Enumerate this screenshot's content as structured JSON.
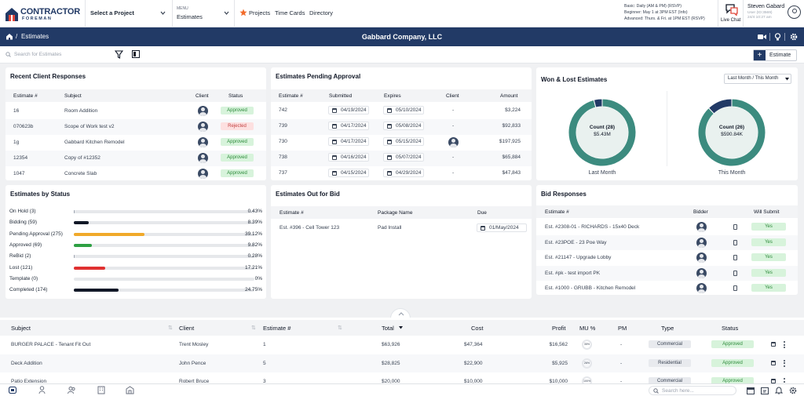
{
  "topbar": {
    "logo_word": "CONTRACTOR",
    "logo_sub": "FOREMAN",
    "project_select": "Select a Project",
    "menu_label": "MENU",
    "menu_value": "Estimates",
    "quick_links": [
      "Projects",
      "Time Cards",
      "Directory"
    ],
    "schedule_lines": [
      "Basic: Daily (AM & PM) (RSVP)",
      "Beginner: May 1 at 3PM EST (Info)",
      "Advanced: Thurs. & Fri. at 1PM EST (RSVP)"
    ],
    "live_chat": "Live Chat",
    "user_name": "Steven Gabard",
    "user_sub1": "User (ID:3569)",
    "user_sub2": "24/4 10:27 am"
  },
  "breadcrumb": {
    "sep": "/",
    "label": "Estimates"
  },
  "company": "Gabbard Company, LLC",
  "search": {
    "placeholder": "Search for Estimates"
  },
  "add_button": {
    "plus": "+",
    "label": "Estimate"
  },
  "recent": {
    "title": "Recent Client Responses",
    "headers": [
      "Estimate #",
      "Subject",
      "Client",
      "Status"
    ],
    "rows": [
      {
        "est": "16",
        "subject": "Room Addition",
        "status": "Approved"
      },
      {
        "est": "070623b",
        "subject": "Scope of Work test v2",
        "status": "Rejected"
      },
      {
        "est": "1g",
        "subject": "Gabbard Kitchen Remodel",
        "status": "Approved"
      },
      {
        "est": "12354",
        "subject": "Copy of #12352",
        "status": "Approved"
      },
      {
        "est": "1047",
        "subject": "Concrete Slab",
        "status": "Approved"
      }
    ]
  },
  "pending": {
    "title": "Estimates Pending Approval",
    "headers": [
      "Estimate #",
      "Submitted",
      "Expires",
      "Client",
      "Amount"
    ],
    "rows": [
      {
        "est": "742",
        "submitted": "04/19/2024",
        "expires": "05/10/2024",
        "client": "-",
        "amount": "$3,224"
      },
      {
        "est": "739",
        "submitted": "04/17/2024",
        "expires": "05/08/2024",
        "client": "-",
        "amount": "$92,833"
      },
      {
        "est": "730",
        "submitted": "04/17/2024",
        "expires": "05/15/2024",
        "client": "",
        "amount": "$197,925"
      },
      {
        "est": "738",
        "submitted": "04/16/2024",
        "expires": "05/07/2024",
        "client": "-",
        "amount": "$65,884"
      },
      {
        "est": "737",
        "submitted": "04/15/2024",
        "expires": "04/29/2024",
        "client": "-",
        "amount": "$47,843"
      }
    ]
  },
  "wonlost": {
    "title": "Won & Lost Estimates",
    "range": "Last Month / This Month",
    "donuts": [
      {
        "count_label": "Count (28)",
        "amount": "$5.43M",
        "caption": "Last Month",
        "won_fraction": 0.96
      },
      {
        "count_label": "Count (26)",
        "amount": "$590.84K",
        "caption": "This Month",
        "won_fraction": 0.88
      }
    ],
    "colors": {
      "won": "#3c8b7f",
      "lost": "#223a66",
      "hole": "#e9f1ef"
    }
  },
  "by_status": {
    "title": "Estimates by Status",
    "items": [
      {
        "name": "On Hold (3)",
        "pct": "0.43%",
        "value": 0.43,
        "color": "#9ca3af"
      },
      {
        "name": "Bidding (59)",
        "pct": "8.39%",
        "value": 8.39,
        "color": "#111827"
      },
      {
        "name": "Pending Approval (275)",
        "pct": "39.12%",
        "value": 39.12,
        "color": "#f0a92a"
      },
      {
        "name": "Approved (69)",
        "pct": "9.82%",
        "value": 9.82,
        "color": "#2ea043"
      },
      {
        "name": "ReBid (2)",
        "pct": "0.28%",
        "value": 0.28,
        "color": "#9ca3af"
      },
      {
        "name": "Lost (121)",
        "pct": "17.21%",
        "value": 17.21,
        "color": "#e03131"
      },
      {
        "name": "Template (0)",
        "pct": "0%",
        "value": 0,
        "color": "#9ca3af"
      },
      {
        "name": "Completed (174)",
        "pct": "24.75%",
        "value": 24.75,
        "color": "#111827"
      }
    ]
  },
  "out_for_bid": {
    "title": "Estimates Out for Bid",
    "headers": [
      "Estimate #",
      "Package Name",
      "Due"
    ],
    "rows": [
      {
        "est": "Est. #396 - Cell Tower 123",
        "package": "Pad Install",
        "due": "01/May/2024"
      }
    ]
  },
  "bid_responses": {
    "title": "Bid Responses",
    "headers": [
      "Estimate #",
      "Bidder",
      "Will Submit"
    ],
    "rows": [
      {
        "est": "Est. #2308-01 - RICHARDS - 15x40 Deck",
        "submit": "Yes"
      },
      {
        "est": "Est. #23POE - 23 Poe Way",
        "submit": "Yes"
      },
      {
        "est": "Est. #21147 - Upgrade Lobby",
        "submit": "Yes"
      },
      {
        "est": "Est. #pk - test import PK",
        "submit": "Yes"
      },
      {
        "est": "Est. #1000 - GRUBB - Kitchen Remodel",
        "submit": "Yes"
      }
    ]
  },
  "main_table": {
    "headers": [
      "Subject",
      "Client",
      "Estimate #",
      "Total",
      "Cost",
      "Profit",
      "MU %",
      "PM",
      "Type",
      "Status"
    ],
    "rows": [
      {
        "subject": "BURGER PALACE - Tenant Fit Out",
        "client": "Trent Mosley",
        "est": "1",
        "total": "$63,926",
        "cost": "$47,364",
        "profit": "$16,562",
        "mu": "35%",
        "pm": "-",
        "type": "Commercial",
        "status": "Approved"
      },
      {
        "subject": "Deck Addition",
        "client": "John Pence",
        "est": "5",
        "total": "$28,825",
        "cost": "$22,900",
        "profit": "$5,925",
        "mu": "26%",
        "pm": "-",
        "type": "Residential",
        "status": "Approved"
      },
      {
        "subject": "Patio Extension",
        "client": "Robert Bruce",
        "est": "3",
        "total": "$20,000",
        "cost": "$10,000",
        "profit": "$10,000",
        "mu": "100%",
        "pm": "-",
        "type": "Commercial",
        "status": "Approved"
      }
    ]
  },
  "taskbar": {
    "search_placeholder": "Search here..."
  }
}
